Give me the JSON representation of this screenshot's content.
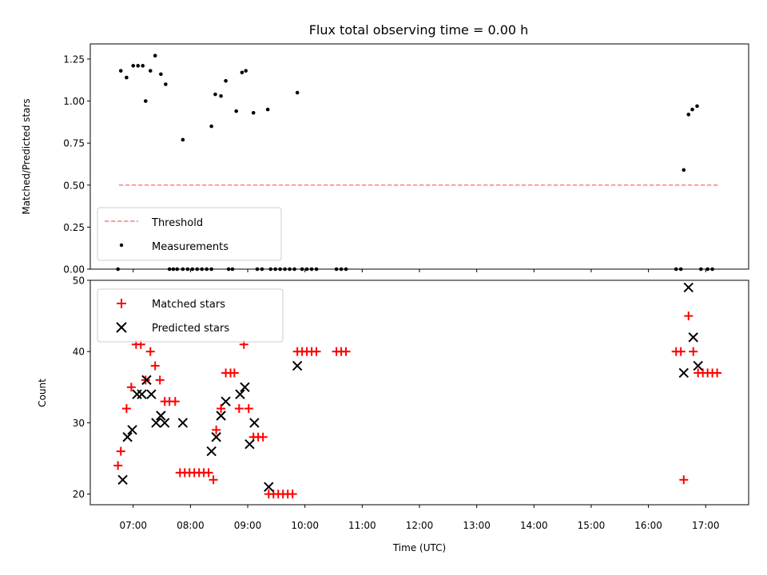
{
  "colors": {
    "threshold": "#ff7f7f",
    "measurements": "#000000",
    "matched": "#ff0000",
    "predicted": "#000000",
    "frame": "#000000"
  },
  "chart_data": [
    {
      "type": "scatter",
      "title": "Flux total observing time = 0.00 h",
      "xlabel": "",
      "ylabel": "Matched/Predicted stars",
      "ylim": [
        0,
        1.34
      ],
      "xlim": [
        "06:15",
        "17:45"
      ],
      "yticks": [
        "0.00",
        "0.25",
        "0.50",
        "0.75",
        "1.00",
        "1.25"
      ],
      "ytick_values": [
        0,
        0.25,
        0.5,
        0.75,
        1.0,
        1.25
      ],
      "legend": {
        "position": "lower-left",
        "entries": [
          "Threshold",
          "Measurements"
        ]
      },
      "threshold": {
        "name": "Threshold",
        "y": 0.5,
        "x_start": "06:45",
        "x_end": "17:13"
      },
      "measurements": {
        "name": "Measurements",
        "points": [
          [
            "06:44",
            0.0
          ],
          [
            "06:47",
            1.18
          ],
          [
            "06:53",
            1.14
          ],
          [
            "07:00",
            1.21
          ],
          [
            "07:05",
            1.21
          ],
          [
            "07:10",
            1.21
          ],
          [
            "07:13",
            1.0
          ],
          [
            "07:18",
            1.18
          ],
          [
            "07:23",
            1.27
          ],
          [
            "07:29",
            1.16
          ],
          [
            "07:34",
            1.1
          ],
          [
            "07:38",
            0.0
          ],
          [
            "07:42",
            0.0
          ],
          [
            "07:46",
            0.0
          ],
          [
            "07:52",
            0.77
          ],
          [
            "07:52",
            0.0
          ],
          [
            "07:57",
            0.0
          ],
          [
            "08:02",
            0.0
          ],
          [
            "08:07",
            0.0
          ],
          [
            "08:12",
            0.0
          ],
          [
            "08:17",
            0.0
          ],
          [
            "08:22",
            0.0
          ],
          [
            "08:22",
            0.85
          ],
          [
            "08:26",
            1.04
          ],
          [
            "08:32",
            1.03
          ],
          [
            "08:37",
            1.12
          ],
          [
            "08:40",
            0.0
          ],
          [
            "08:44",
            0.0
          ],
          [
            "08:48",
            0.94
          ],
          [
            "08:54",
            1.17
          ],
          [
            "08:58",
            1.18
          ],
          [
            "09:06",
            0.93
          ],
          [
            "09:10",
            0.0
          ],
          [
            "09:15",
            0.0
          ],
          [
            "09:21",
            0.95
          ],
          [
            "09:24",
            0.0
          ],
          [
            "09:29",
            0.0
          ],
          [
            "09:34",
            0.0
          ],
          [
            "09:39",
            0.0
          ],
          [
            "09:44",
            0.0
          ],
          [
            "09:49",
            0.0
          ],
          [
            "09:52",
            1.05
          ],
          [
            "09:57",
            0.0
          ],
          [
            "10:02",
            0.0
          ],
          [
            "10:07",
            0.0
          ],
          [
            "10:12",
            0.0
          ],
          [
            "10:33",
            0.0
          ],
          [
            "10:38",
            0.0
          ],
          [
            "10:43",
            0.0
          ],
          [
            "16:29",
            0.0
          ],
          [
            "16:34",
            0.0
          ],
          [
            "16:37",
            0.59
          ],
          [
            "16:42",
            0.92
          ],
          [
            "16:46",
            0.95
          ],
          [
            "16:51",
            0.97
          ],
          [
            "16:55",
            0.0
          ],
          [
            "17:02",
            0.0
          ],
          [
            "17:07",
            0.0
          ]
        ]
      }
    },
    {
      "type": "scatter",
      "title": "",
      "xlabel": "Time (UTC)",
      "ylabel": "Count",
      "ylim": [
        18.5,
        50
      ],
      "xlim": [
        "06:15",
        "17:45"
      ],
      "yticks": [
        "20",
        "30",
        "40",
        "50"
      ],
      "ytick_values": [
        20,
        30,
        40,
        50
      ],
      "xticks": [
        "07:00",
        "08:00",
        "09:00",
        "10:00",
        "11:00",
        "12:00",
        "13:00",
        "14:00",
        "15:00",
        "16:00",
        "17:00"
      ],
      "legend": {
        "position": "upper-left",
        "entries": [
          "Matched stars",
          "Predicted stars"
        ]
      },
      "series": [
        {
          "name": "Matched stars",
          "marker": "+",
          "points": [
            [
              "06:44",
              24
            ],
            [
              "06:47",
              26
            ],
            [
              "06:53",
              32
            ],
            [
              "06:58",
              35
            ],
            [
              "07:03",
              41
            ],
            [
              "07:08",
              41
            ],
            [
              "07:13",
              36
            ],
            [
              "07:18",
              40
            ],
            [
              "07:23",
              38
            ],
            [
              "07:28",
              36
            ],
            [
              "07:33",
              33
            ],
            [
              "07:38",
              33
            ],
            [
              "07:44",
              33
            ],
            [
              "07:49",
              23
            ],
            [
              "07:54",
              23
            ],
            [
              "07:59",
              23
            ],
            [
              "08:04",
              23
            ],
            [
              "08:09",
              23
            ],
            [
              "08:14",
              23
            ],
            [
              "08:19",
              23
            ],
            [
              "08:24",
              22
            ],
            [
              "08:27",
              29
            ],
            [
              "08:32",
              32
            ],
            [
              "08:37",
              37
            ],
            [
              "08:42",
              37
            ],
            [
              "08:46",
              37
            ],
            [
              "08:51",
              32
            ],
            [
              "08:56",
              41
            ],
            [
              "09:01",
              32
            ],
            [
              "09:06",
              28
            ],
            [
              "09:11",
              28
            ],
            [
              "09:16",
              28
            ],
            [
              "09:22",
              20
            ],
            [
              "09:27",
              20
            ],
            [
              "09:32",
              20
            ],
            [
              "09:37",
              20
            ],
            [
              "09:42",
              20
            ],
            [
              "09:47",
              20
            ],
            [
              "09:52",
              40
            ],
            [
              "09:57",
              40
            ],
            [
              "10:02",
              40
            ],
            [
              "10:07",
              40
            ],
            [
              "10:12",
              40
            ],
            [
              "10:33",
              40
            ],
            [
              "10:38",
              40
            ],
            [
              "10:43",
              40
            ],
            [
              "16:29",
              40
            ],
            [
              "16:34",
              40
            ],
            [
              "16:37",
              22
            ],
            [
              "16:42",
              45
            ],
            [
              "16:47",
              40
            ],
            [
              "16:52",
              37
            ],
            [
              "16:57",
              37
            ],
            [
              "17:02",
              37
            ],
            [
              "17:07",
              37
            ],
            [
              "17:12",
              37
            ]
          ]
        },
        {
          "name": "Predicted stars",
          "marker": "x",
          "points": [
            [
              "06:49",
              22
            ],
            [
              "06:54",
              28
            ],
            [
              "06:59",
              29
            ],
            [
              "07:04",
              34
            ],
            [
              "07:09",
              34
            ],
            [
              "07:14",
              36
            ],
            [
              "07:19",
              34
            ],
            [
              "07:24",
              30
            ],
            [
              "07:29",
              31
            ],
            [
              "07:33",
              30
            ],
            [
              "07:52",
              30
            ],
            [
              "08:22",
              26
            ],
            [
              "08:27",
              28
            ],
            [
              "08:32",
              31
            ],
            [
              "08:37",
              33
            ],
            [
              "08:52",
              34
            ],
            [
              "08:57",
              35
            ],
            [
              "09:02",
              27
            ],
            [
              "09:07",
              30
            ],
            [
              "09:22",
              21
            ],
            [
              "09:52",
              38
            ],
            [
              "16:37",
              37
            ],
            [
              "16:42",
              49
            ],
            [
              "16:47",
              42
            ],
            [
              "16:52",
              38
            ]
          ]
        }
      ]
    }
  ]
}
